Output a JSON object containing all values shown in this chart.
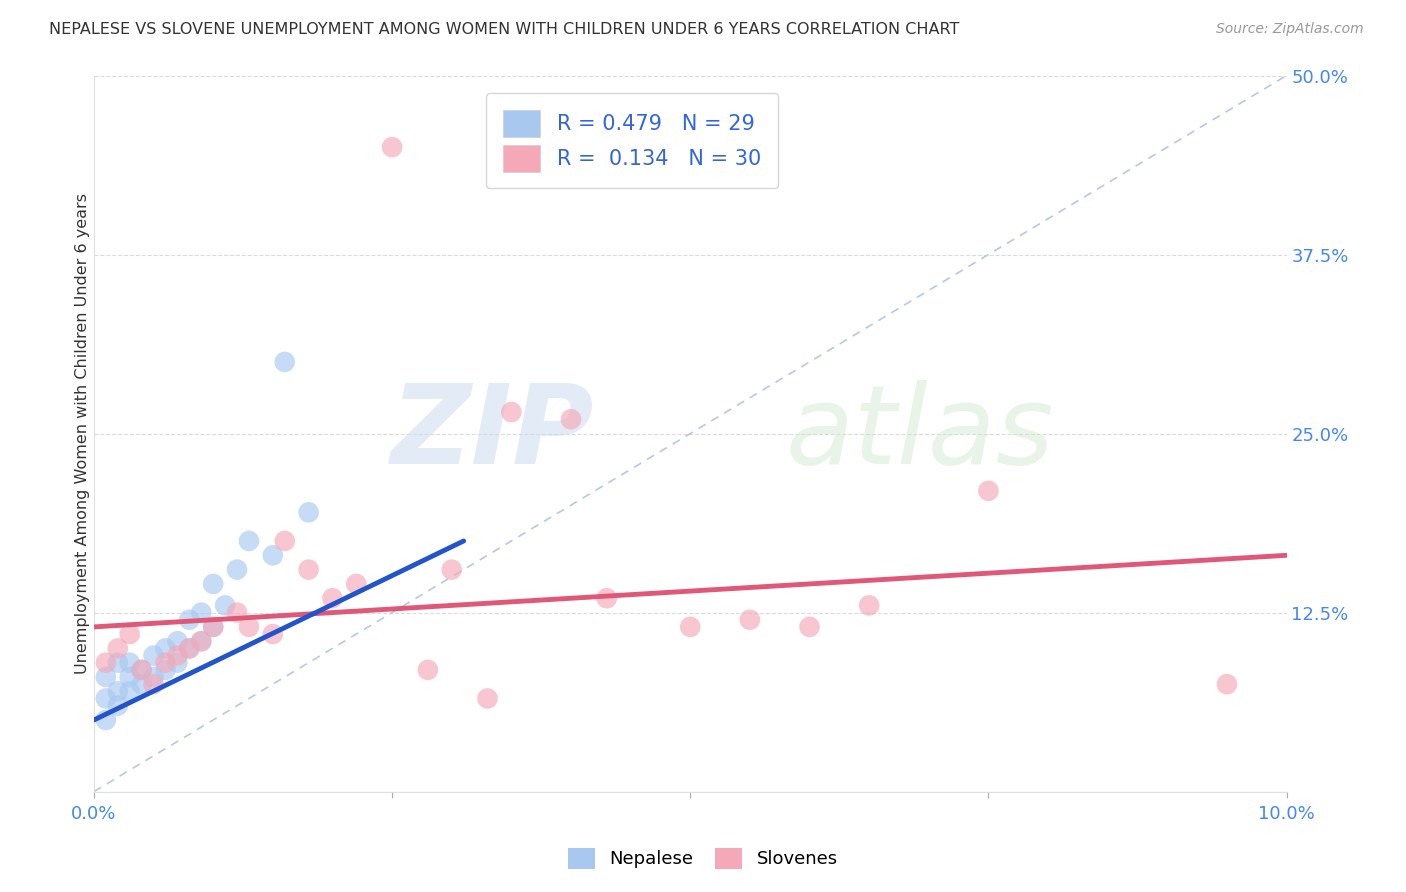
{
  "title": "NEPALESE VS SLOVENE UNEMPLOYMENT AMONG WOMEN WITH CHILDREN UNDER 6 YEARS CORRELATION CHART",
  "source": "Source: ZipAtlas.com",
  "ylabel": "Unemployment Among Women with Children Under 6 years",
  "watermark_zip": "ZIP",
  "watermark_atlas": "atlas",
  "R_nepalese": 0.479,
  "N_nepalese": 29,
  "R_slovene": 0.134,
  "N_slovene": 30,
  "xlim": [
    0,
    0.1
  ],
  "ylim": [
    0,
    0.5
  ],
  "xticks": [
    0.0,
    0.025,
    0.05,
    0.075,
    0.1
  ],
  "yticks": [
    0.0,
    0.125,
    0.25,
    0.375,
    0.5
  ],
  "nepalese_color": "#a8c8f0",
  "slovene_color": "#f4a8b8",
  "nepalese_line_color": "#2255cc",
  "slovene_line_color": "#e05878",
  "ref_line_color": "#b8c8e0",
  "nepalese_x": [
    0.001,
    0.001,
    0.001,
    0.002,
    0.002,
    0.002,
    0.003,
    0.003,
    0.003,
    0.004,
    0.004,
    0.005,
    0.005,
    0.006,
    0.006,
    0.007,
    0.007,
    0.008,
    0.008,
    0.009,
    0.009,
    0.01,
    0.01,
    0.011,
    0.012,
    0.013,
    0.015,
    0.016,
    0.018
  ],
  "nepalese_y": [
    0.05,
    0.065,
    0.08,
    0.06,
    0.07,
    0.09,
    0.07,
    0.08,
    0.09,
    0.075,
    0.085,
    0.08,
    0.095,
    0.085,
    0.1,
    0.09,
    0.105,
    0.1,
    0.12,
    0.105,
    0.125,
    0.115,
    0.145,
    0.13,
    0.155,
    0.175,
    0.165,
    0.3,
    0.195
  ],
  "slovene_x": [
    0.001,
    0.002,
    0.003,
    0.004,
    0.005,
    0.006,
    0.007,
    0.008,
    0.009,
    0.01,
    0.012,
    0.013,
    0.015,
    0.016,
    0.018,
    0.02,
    0.022,
    0.025,
    0.028,
    0.03,
    0.033,
    0.035,
    0.04,
    0.043,
    0.05,
    0.055,
    0.06,
    0.065,
    0.075,
    0.095
  ],
  "slovene_y": [
    0.09,
    0.1,
    0.11,
    0.085,
    0.075,
    0.09,
    0.095,
    0.1,
    0.105,
    0.115,
    0.125,
    0.115,
    0.11,
    0.175,
    0.155,
    0.135,
    0.145,
    0.45,
    0.085,
    0.155,
    0.065,
    0.265,
    0.26,
    0.135,
    0.115,
    0.12,
    0.115,
    0.13,
    0.21,
    0.075
  ],
  "nepalese_trend_x": [
    0.0,
    0.031
  ],
  "nepalese_trend_y": [
    0.05,
    0.175
  ],
  "slovene_trend_x": [
    0.0,
    0.1
  ],
  "slovene_trend_y": [
    0.115,
    0.165
  ],
  "legend_label_nepalese": "Nepalese",
  "legend_label_slovene": "Slovenes",
  "background_color": "#ffffff",
  "grid_color": "#d8d8d8"
}
